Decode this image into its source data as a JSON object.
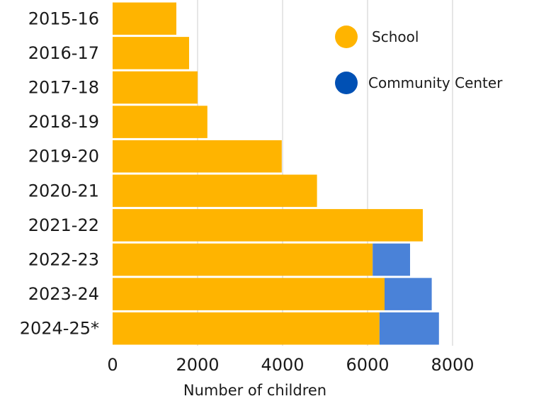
{
  "chart_data": {
    "type": "bar",
    "orientation": "horizontal",
    "stacked": true,
    "categories": [
      "2015-16",
      "2016-17",
      "2017-18",
      "2018-19",
      "2019-20",
      "2020-21",
      "2021-22",
      "2022-23",
      "2023-24",
      "2024-25*"
    ],
    "series": [
      {
        "name": "School",
        "color": "#ffb400",
        "values": [
          1500,
          1800,
          2000,
          2230,
          3980,
          4810,
          7300,
          6120,
          6400,
          6280
        ]
      },
      {
        "name": "Community Center",
        "color": "#4a82d8",
        "values": [
          0,
          0,
          0,
          0,
          0,
          0,
          0,
          880,
          1110,
          1400
        ]
      }
    ],
    "xlabel": "Number of children",
    "ylabel": "",
    "title": "",
    "xlim": [
      0,
      8000
    ],
    "x_ticks": [
      "0",
      "2000",
      "4000",
      "6000",
      "8000"
    ],
    "grid": "vertical",
    "legend": {
      "placement": "top-right",
      "items": [
        {
          "label": "School",
          "color": "#ffb400"
        },
        {
          "label": "Community Center",
          "color": "#0050b4"
        }
      ]
    }
  }
}
